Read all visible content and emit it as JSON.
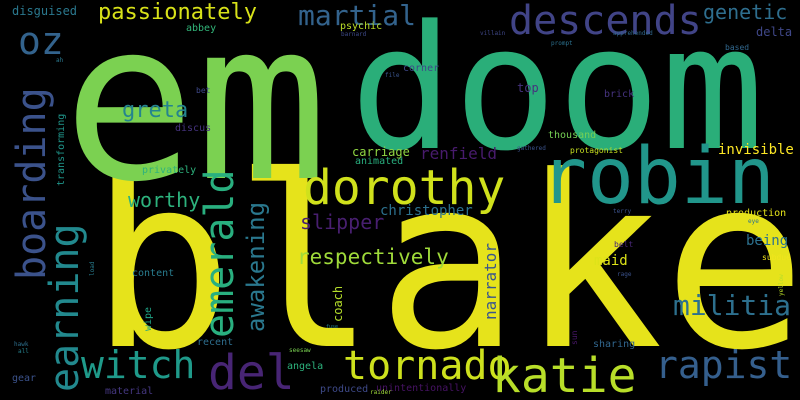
{
  "words": [
    {
      "text": "blake",
      "color": "#e6e31b"
    },
    {
      "text": "em",
      "color": "#7bd151"
    },
    {
      "text": "doom",
      "color": "#2aae79"
    },
    {
      "text": "robin",
      "color": "#21968b"
    },
    {
      "text": "dorothy",
      "color": "#d0e11c"
    },
    {
      "text": "tornado",
      "color": "#cde11d"
    },
    {
      "text": "katie",
      "color": "#b8de29"
    },
    {
      "text": "witch",
      "color": "#1f9a8a"
    },
    {
      "text": "del",
      "color": "#482575"
    },
    {
      "text": "rapist",
      "color": "#355f8d"
    },
    {
      "text": "descends",
      "color": "#414487"
    },
    {
      "text": "boarding",
      "color": "#3b528b"
    },
    {
      "text": "oz",
      "color": "#33638d"
    },
    {
      "text": "earning",
      "color": "#22898e"
    },
    {
      "text": "emerald",
      "color": "#29af7f"
    },
    {
      "text": "militia",
      "color": "#2d708e"
    },
    {
      "text": "passionately",
      "color": "#d8e219"
    },
    {
      "text": "martial",
      "color": "#33638d"
    },
    {
      "text": "genetic",
      "color": "#2e6e8e"
    },
    {
      "text": "respectively",
      "color": "#9fda3a"
    },
    {
      "text": "awakening",
      "color": "#2a788e"
    },
    {
      "text": "greta",
      "color": "#25848e"
    },
    {
      "text": "worthy",
      "color": "#2db27d"
    },
    {
      "text": "slipper",
      "color": "#481f70"
    },
    {
      "text": "christopher",
      "color": "#2c718e"
    },
    {
      "text": "renfield",
      "color": "#481b6d"
    },
    {
      "text": "narrator",
      "color": "#39568c"
    },
    {
      "text": "invisible",
      "color": "#fde725"
    },
    {
      "text": "being",
      "color": "#2c718e"
    },
    {
      "text": "maid",
      "color": "#dde318"
    },
    {
      "text": "coach",
      "color": "#b5de2b"
    },
    {
      "text": "carriage",
      "color": "#90d743"
    },
    {
      "text": "delta",
      "color": "#3f4788"
    },
    {
      "text": "production",
      "color": "#e5e419"
    },
    {
      "text": "thousand",
      "color": "#75d054"
    },
    {
      "text": "top",
      "color": "#46327e"
    },
    {
      "text": "brick",
      "color": "#46337f"
    },
    {
      "text": "transforming",
      "color": "#1f968b"
    },
    {
      "text": "disguised",
      "color": "#2a788e"
    },
    {
      "text": "privately",
      "color": "#2db27d"
    },
    {
      "text": "discus",
      "color": "#46337f"
    },
    {
      "text": "abbey",
      "color": "#32b67a"
    },
    {
      "text": "psychic",
      "color": "#bade28"
    },
    {
      "text": "corner",
      "color": "#3f4889"
    },
    {
      "text": "animated",
      "color": "#29af7f"
    },
    {
      "text": "protagonist",
      "color": "#c8e020"
    },
    {
      "text": "content",
      "color": "#287c8e"
    },
    {
      "text": "wipe",
      "color": "#20a386"
    },
    {
      "text": "recent",
      "color": "#2e6e8e"
    },
    {
      "text": "angela",
      "color": "#2db27d"
    },
    {
      "text": "produced",
      "color": "#3e4a89"
    },
    {
      "text": "unintentionally",
      "color": "#471365"
    },
    {
      "text": "sharing",
      "color": "#31668e"
    },
    {
      "text": "material",
      "color": "#453781"
    },
    {
      "text": "gear",
      "color": "#3b528b"
    },
    {
      "text": "based",
      "color": "#31688e"
    },
    {
      "text": "bet",
      "color": "#3e4989"
    },
    {
      "text": "subdue",
      "color": "#f1e51d"
    },
    {
      "text": "sun",
      "color": "#481769"
    },
    {
      "text": "hawk",
      "color": "#2d708e"
    },
    {
      "text": "all",
      "color": "#26828e"
    },
    {
      "text": "villain",
      "color": "#3f4788"
    },
    {
      "text": "prompt",
      "color": "#2c718e"
    },
    {
      "text": "file",
      "color": "#3a548c"
    },
    {
      "text": "gathered",
      "color": "#3b528b"
    },
    {
      "text": "terry",
      "color": "#3b528b"
    },
    {
      "text": "eye",
      "color": "#2c718e"
    },
    {
      "text": "belt",
      "color": "#482878"
    },
    {
      "text": "rage",
      "color": "#3b528b"
    },
    {
      "text": "yellow",
      "color": "#bade28"
    },
    {
      "text": "load",
      "color": "#287c8e"
    },
    {
      "text": "raider",
      "color": "#9fda3a"
    },
    {
      "text": "seesaw",
      "color": "#7ad151"
    },
    {
      "text": "fuse",
      "color": "#26828e"
    },
    {
      "text": "barnard",
      "color": "#3e4a89"
    },
    {
      "text": "apprehended",
      "color": "#31688e"
    },
    {
      "text": "ah",
      "color": "#2a788e"
    }
  ]
}
